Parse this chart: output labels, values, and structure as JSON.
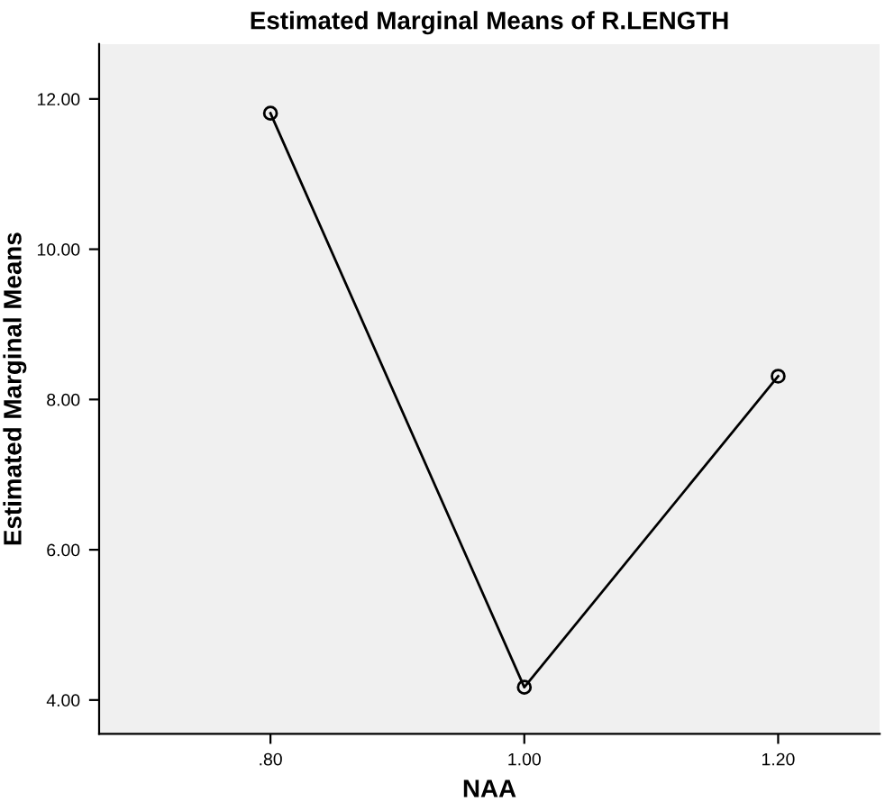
{
  "chart_data": {
    "type": "line",
    "title": "Estimated Marginal Means of R.LENGTH",
    "xlabel": "NAA",
    "ylabel": "Estimated Marginal Means",
    "x": [
      0.8,
      1.0,
      1.2
    ],
    "series": [
      {
        "color": "#000000",
        "values": [
          11.81,
          4.17,
          8.31
        ]
      }
    ],
    "xlim": [
      0.665,
      1.28
    ],
    "xticks": [
      {
        "value": 0.8,
        "label": ".80"
      },
      {
        "value": 1.0,
        "label": "1.00"
      },
      {
        "value": 1.2,
        "label": "1.20"
      }
    ],
    "ylim": [
      3.55,
      12.73
    ],
    "yticks": [
      {
        "value": 4,
        "label": "4.00"
      },
      {
        "value": 6,
        "label": "6.00"
      },
      {
        "value": 8,
        "label": "8.00"
      },
      {
        "value": 10,
        "label": "10.00"
      },
      {
        "value": 12,
        "label": "12.00"
      }
    ],
    "marker": "circle",
    "line_style": "solid",
    "grid": false,
    "legend": false
  }
}
